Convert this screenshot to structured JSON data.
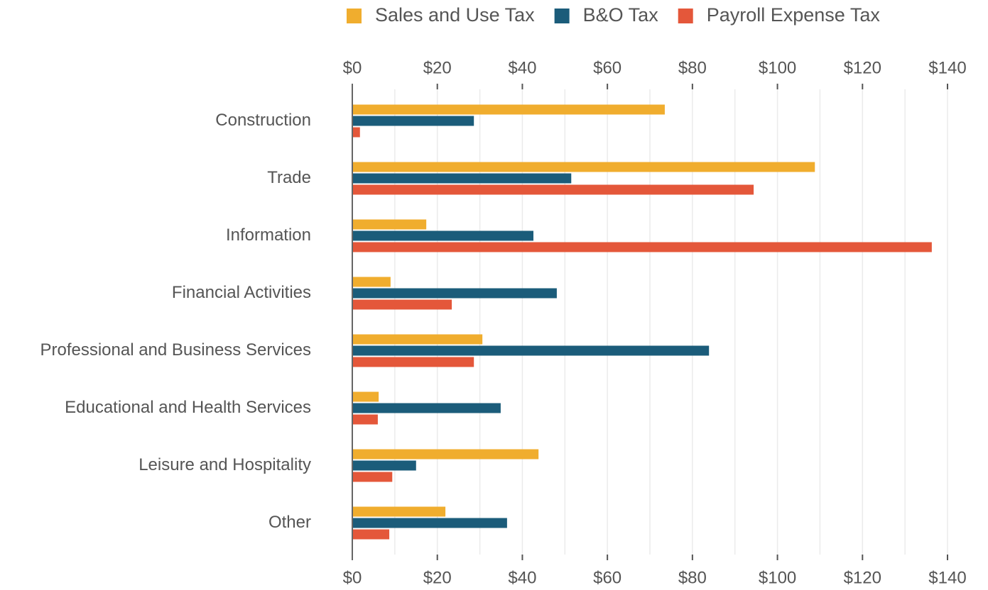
{
  "chart_data": {
    "type": "bar",
    "orientation": "horizontal",
    "categories": [
      "Construction",
      "Trade",
      "Information",
      "Financial Activities",
      "Professional and Business Services",
      "Educational and Health Services",
      "Leisure and Hospitality",
      "Other"
    ],
    "series": [
      {
        "name": "Sales and Use Tax",
        "color": "#f0ad2e",
        "values": [
          73.5,
          108.8,
          17.4,
          9.0,
          30.6,
          6.2,
          43.8,
          21.9
        ]
      },
      {
        "name": "B&O Tax",
        "color": "#1b5c7a",
        "values": [
          28.6,
          51.5,
          42.6,
          48.1,
          83.9,
          34.9,
          15.0,
          36.4
        ]
      },
      {
        "name": "Payroll Expense Tax",
        "color": "#e4573a",
        "values": [
          1.8,
          94.4,
          136.3,
          23.4,
          28.6,
          6.0,
          9.4,
          8.7
        ]
      }
    ],
    "xlim": [
      0,
      140
    ],
    "xticks": [
      {
        "value": 0,
        "label": "$0"
      },
      {
        "value": 20,
        "label": "$20"
      },
      {
        "value": 40,
        "label": "$40"
      },
      {
        "value": 60,
        "label": "$60"
      },
      {
        "value": 80,
        "label": "$80"
      },
      {
        "value": 100,
        "label": "$100"
      },
      {
        "value": 120,
        "label": "$120"
      },
      {
        "value": 140,
        "label": "$140"
      }
    ],
    "minor_xticks": [
      10,
      30,
      50,
      70,
      90,
      110,
      130
    ],
    "grid": true,
    "legend": "top"
  }
}
